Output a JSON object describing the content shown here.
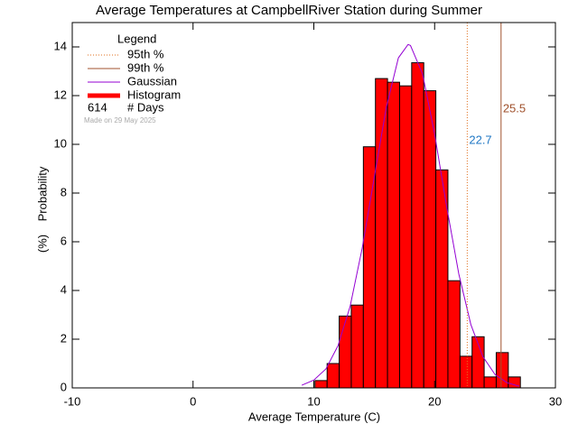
{
  "chart_data": {
    "type": "histogram",
    "title": "Average Temperatures at CampbellRiver Station during Summer",
    "xlabel": "Average Temperature (C)",
    "ylabel": "Probability",
    "ylabel_unit": "(%)",
    "xlim": [
      -10,
      30
    ],
    "ylim": [
      0,
      15
    ],
    "xticks": [
      -10,
      0,
      10,
      20,
      30
    ],
    "yticks": [
      0,
      2,
      4,
      6,
      8,
      10,
      12,
      14
    ],
    "bins": [
      10.1,
      11.1,
      12.1,
      13.1,
      14.1,
      15.1,
      16.1,
      17.1,
      18.1,
      19.1,
      20.1,
      21.1,
      22.1,
      23.1,
      24.1,
      25.1,
      26.1,
      27.1
    ],
    "series": [
      {
        "name": "Histogram",
        "color": "#ff0000",
        "values": [
          0.3,
          1.0,
          2.95,
          3.4,
          9.9,
          12.7,
          12.55,
          12.4,
          13.35,
          12.2,
          8.95,
          4.4,
          1.3,
          2.1,
          0.45,
          1.45,
          0.45
        ]
      },
      {
        "name": "Gaussian",
        "color": "#9400d3",
        "x": [
          9,
          10,
          11,
          12,
          13,
          14,
          15,
          16,
          17,
          17.8,
          18,
          19,
          20,
          21,
          22,
          23,
          24,
          25,
          26,
          27
        ],
        "values": [
          0.11,
          0.32,
          0.78,
          1.73,
          3.34,
          5.73,
          8.64,
          11.52,
          13.55,
          14.1,
          14.06,
          12.89,
          10.42,
          7.43,
          4.68,
          2.6,
          1.28,
          0.55,
          0.21,
          0.07
        ]
      }
    ],
    "percentiles": [
      {
        "name": "95th %",
        "value": 22.7,
        "color": "#e07020",
        "label_color": "#1f77c4",
        "dotted": true
      },
      {
        "name": "99th %",
        "value": 25.5,
        "color": "#a0522d",
        "label_color": "#a0522d",
        "dotted": false
      }
    ],
    "legend_title": "Legend",
    "n_days": 614,
    "days_label": "# Days",
    "note": "Made on 29 May 2025"
  }
}
